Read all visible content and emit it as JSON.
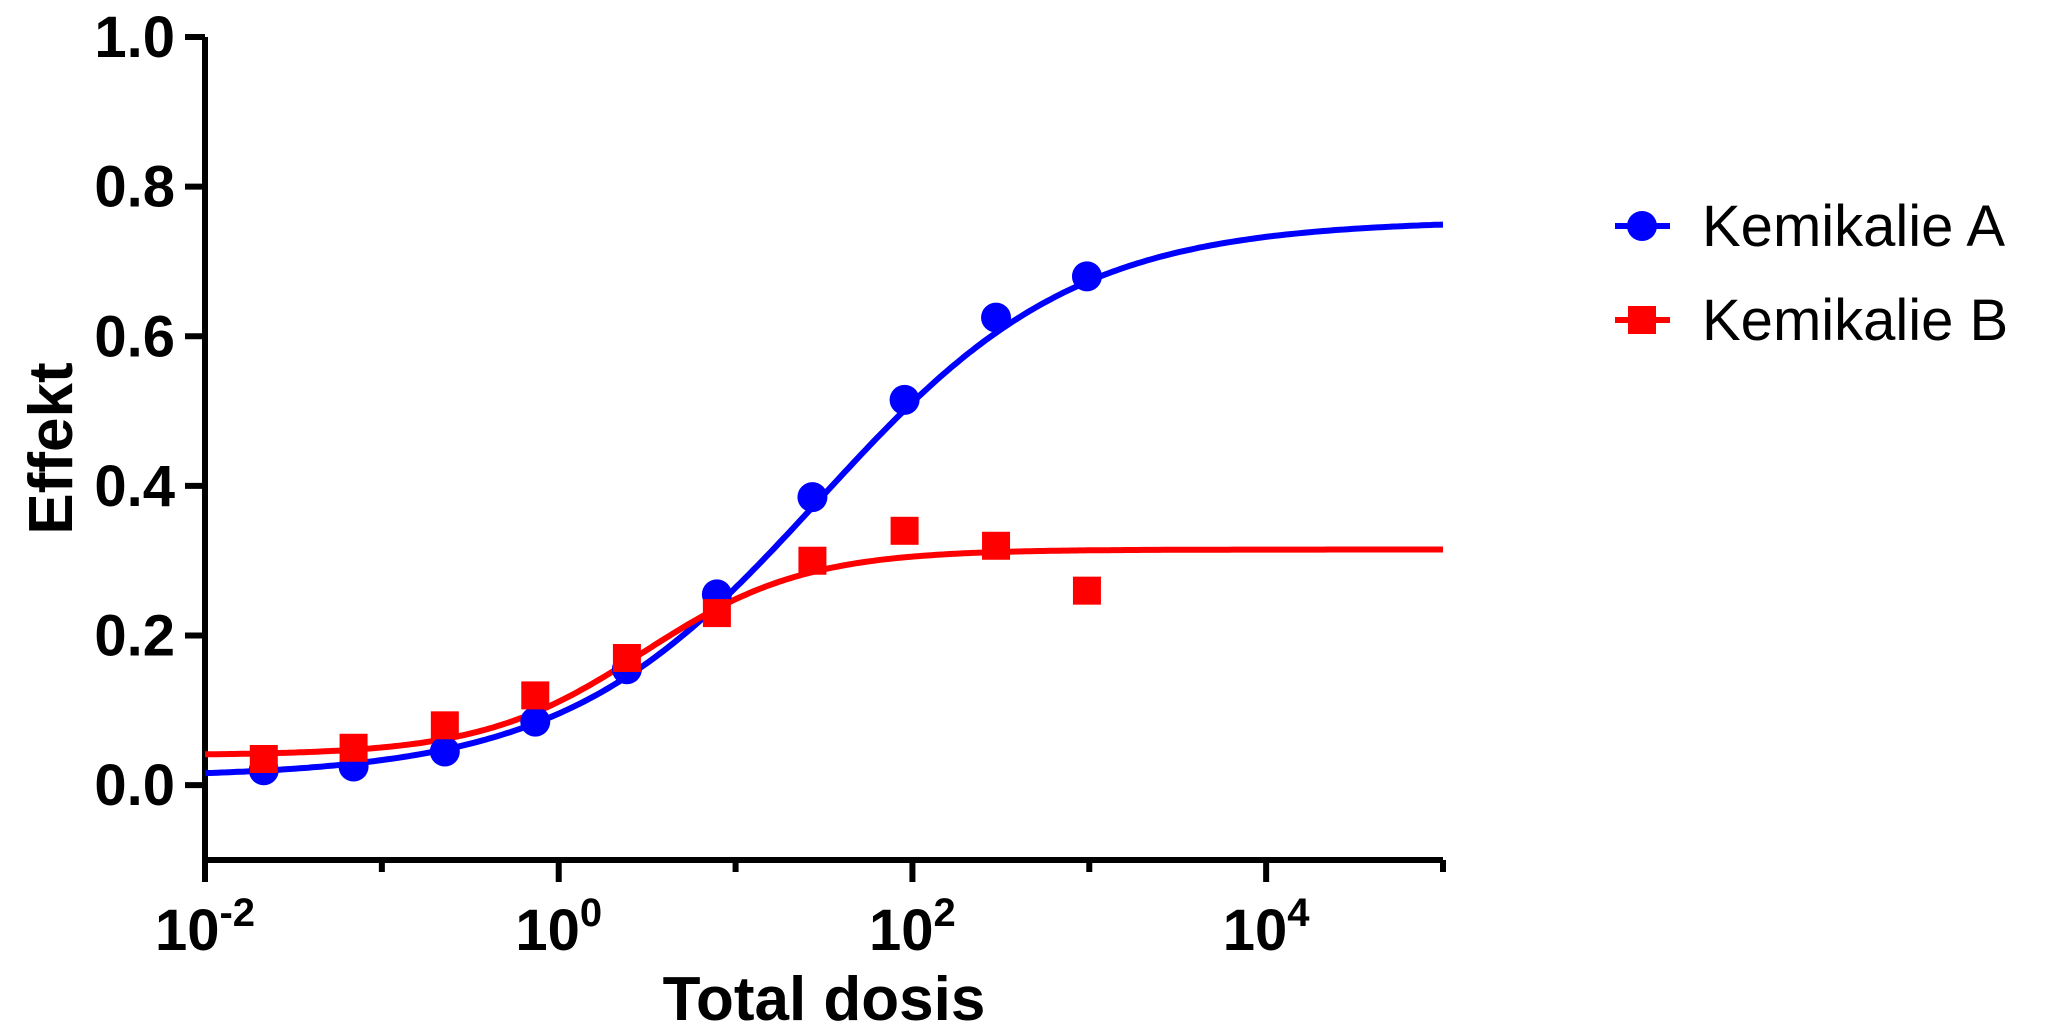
{
  "chart_data": {
    "type": "scatter",
    "title": "",
    "xlabel": "Total dosis",
    "ylabel": "Effekt",
    "xscale": "log",
    "xlim": [
      0.01,
      100000
    ],
    "ylim": [
      -0.1,
      1.0
    ],
    "grid": false,
    "legend_position": "right",
    "x_ticks": [
      {
        "value": 0.01,
        "base": "10",
        "exp": "-2"
      },
      {
        "value": 1,
        "base": "10",
        "exp": "0"
      },
      {
        "value": 100,
        "base": "10",
        "exp": "2"
      },
      {
        "value": 10000,
        "base": "10",
        "exp": "4"
      }
    ],
    "y_ticks": [
      {
        "value": 0.0,
        "label": "0.0"
      },
      {
        "value": 0.2,
        "label": "0.2"
      },
      {
        "value": 0.4,
        "label": "0.4"
      },
      {
        "value": 0.6,
        "label": "0.6"
      },
      {
        "value": 0.8,
        "label": "0.8"
      },
      {
        "value": 1.0,
        "label": "1.0"
      }
    ],
    "series": [
      {
        "name": "Kemikalie A",
        "color": "#0000ff",
        "marker": "circle",
        "x": [
          0.0215,
          0.0692,
          0.227,
          0.737,
          2.43,
          7.84,
          27.2,
          90.3,
          297,
          970
        ],
        "y": [
          0.02,
          0.025,
          0.045,
          0.085,
          0.155,
          0.255,
          0.385,
          0.515,
          0.625,
          0.68
        ],
        "fit": {
          "bottom": 0.01,
          "top": 0.755,
          "ec50": 30,
          "hill": 0.6
        }
      },
      {
        "name": "Kemikalie B",
        "color": "#ff0000",
        "marker": "square",
        "x": [
          0.0215,
          0.0692,
          0.227,
          0.737,
          2.43,
          7.84,
          27.2,
          90.3,
          297,
          970
        ],
        "y": [
          0.035,
          0.05,
          0.08,
          0.12,
          0.17,
          0.23,
          0.3,
          0.34,
          0.32,
          0.26
        ],
        "fit": {
          "bottom": 0.04,
          "top": 0.315,
          "ec50": 3,
          "hill": 0.95
        }
      }
    ]
  }
}
